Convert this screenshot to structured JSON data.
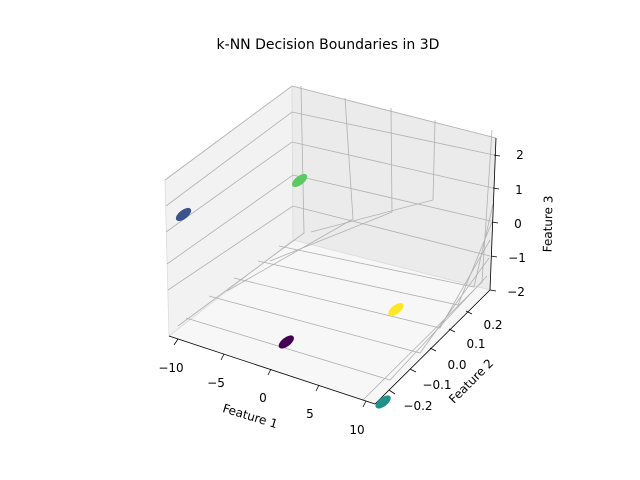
{
  "chart_data": {
    "type": "scatter",
    "projection": "3d",
    "title": "k-NN Decision Boundaries in 3D",
    "xlabel": "Feature 1",
    "ylabel": "Feature 2",
    "zlabel": "Feature 3",
    "xlim": [
      -11,
      11
    ],
    "ylim": [
      -0.25,
      0.25
    ],
    "zlim": [
      -2.5,
      2.5
    ],
    "xticks": [
      "−10",
      "−5",
      "0",
      "5",
      "10"
    ],
    "yticks": [
      "−0.2",
      "−0.1",
      "0.0",
      "0.1",
      "0.2"
    ],
    "zticks": [
      "−2",
      "−1",
      "0",
      "1",
      "2"
    ],
    "grid": true,
    "clusters": [
      {
        "x": -10,
        "y": 0.2,
        "z": 0,
        "color": "#3b528b"
      },
      {
        "x": -5,
        "y": -0.1,
        "z": 0,
        "color": "#440154"
      },
      {
        "x": 0,
        "y": 0.1,
        "z": 2,
        "color": "#5ec962"
      },
      {
        "x": 5,
        "y": -0.1,
        "z": -2,
        "color": "#21918c"
      },
      {
        "x": 10,
        "y": 0.1,
        "z": -2,
        "color": "#fde725"
      }
    ]
  }
}
